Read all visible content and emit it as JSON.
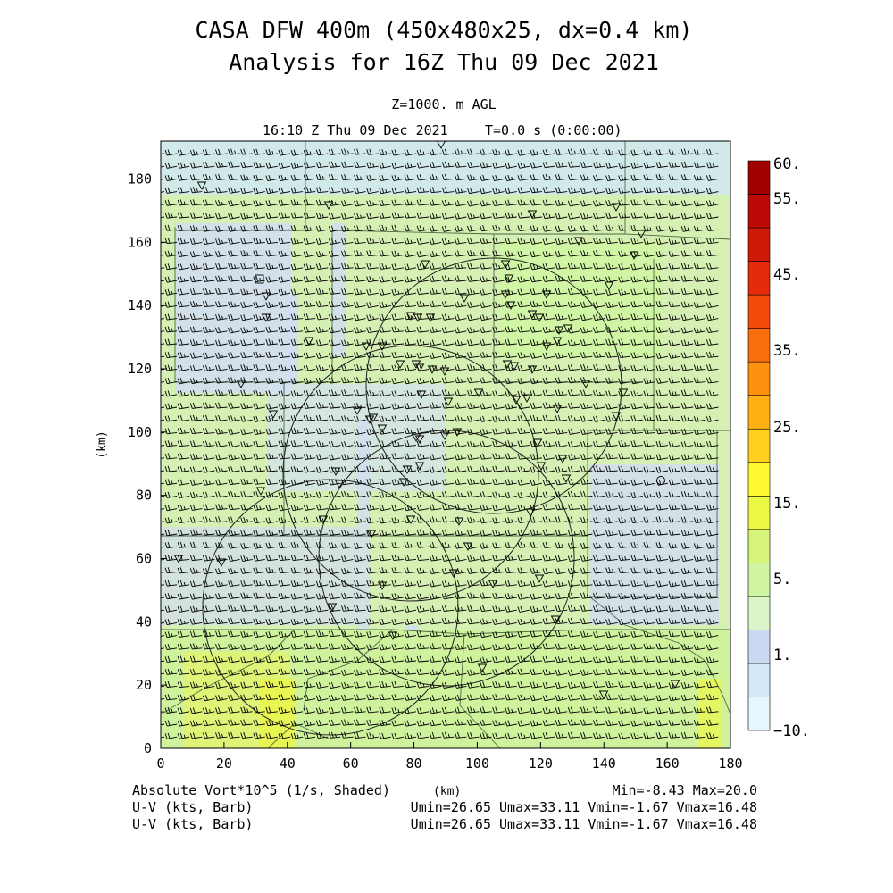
{
  "header": {
    "title_line1": "CASA DFW 400m (450x480x25, dx=0.4 km)",
    "title_line2": "Analysis for 16Z Thu 09 Dec 2021",
    "level": "Z=1000. m AGL",
    "valid_time": "16:10 Z Thu 09 Dec 2021",
    "forecast_time": "T=0.0 s (0:00:00)"
  },
  "footer": {
    "field_label": "Absolute Vort*10^5 (1/s, Shaded)",
    "xunit": "(km)",
    "minmax": "Min=-8.43 Max=20.0",
    "barb_label_1": "U-V (kts, Barb)",
    "barb_stats_1": "Umin=26.65 Umax=33.11 Vmin=-1.67 Vmax=16.48",
    "barb_label_2": "U-V (kts, Barb)",
    "barb_stats_2": "Umin=26.65 Umax=33.11 Vmin=-1.67 Vmax=16.48"
  },
  "chart_data": {
    "type": "heatmap",
    "title": "CASA DFW 400m (450x480x25, dx=0.4 km)",
    "xlabel": "(km)",
    "ylabel": "(km)",
    "xlim": [
      0,
      180
    ],
    "ylim": [
      0,
      192
    ],
    "xticks": [
      0,
      20,
      40,
      60,
      80,
      100,
      120,
      140,
      160,
      180
    ],
    "yticks": [
      0,
      20,
      40,
      60,
      80,
      100,
      120,
      140,
      160,
      180
    ],
    "field": "Absolute Vorticity x10^5 (1/s)",
    "field_min": -8.43,
    "field_max": 20.0,
    "colorbar": {
      "labels": [
        {
          "text": "60.",
          "value": 60
        },
        {
          "text": "55.",
          "value": 55
        },
        {
          "text": "45.",
          "value": 45
        },
        {
          "text": "35.",
          "value": 35
        },
        {
          "text": "25.",
          "value": 25
        },
        {
          "text": "15.",
          "value": 15
        },
        {
          "text": "5.",
          "value": 5
        },
        {
          "text": "1.",
          "value": 1
        },
        {
          "text": "-10.",
          "value": -10
        }
      ],
      "colors": [
        "#e6f6fc",
        "#d2e8f8",
        "#cdd9f2",
        "#dcf5c8",
        "#cff5a2",
        "#d7f47a",
        "#ecf846",
        "#fff830",
        "#ffd020",
        "#ffb014",
        "#ff9010",
        "#f86e0c",
        "#f24a0a",
        "#e42c0a",
        "#d01a08",
        "#bc0a06",
        "#a20000"
      ]
    },
    "wind_barbs": {
      "units": "kts",
      "u_range": [
        26.65,
        33.11
      ],
      "v_range": [
        -1.67,
        16.48
      ]
    },
    "radar_rings": [
      {
        "center_x": 90,
        "center_y": 60,
        "radius_km": 40
      },
      {
        "center_x": 115,
        "center_y": 110,
        "radius_km": 40
      },
      {
        "center_x": 60,
        "center_y": 45,
        "radius_km": 40
      },
      {
        "center_x": 80,
        "center_y": 90,
        "radius_km": 40
      }
    ]
  }
}
